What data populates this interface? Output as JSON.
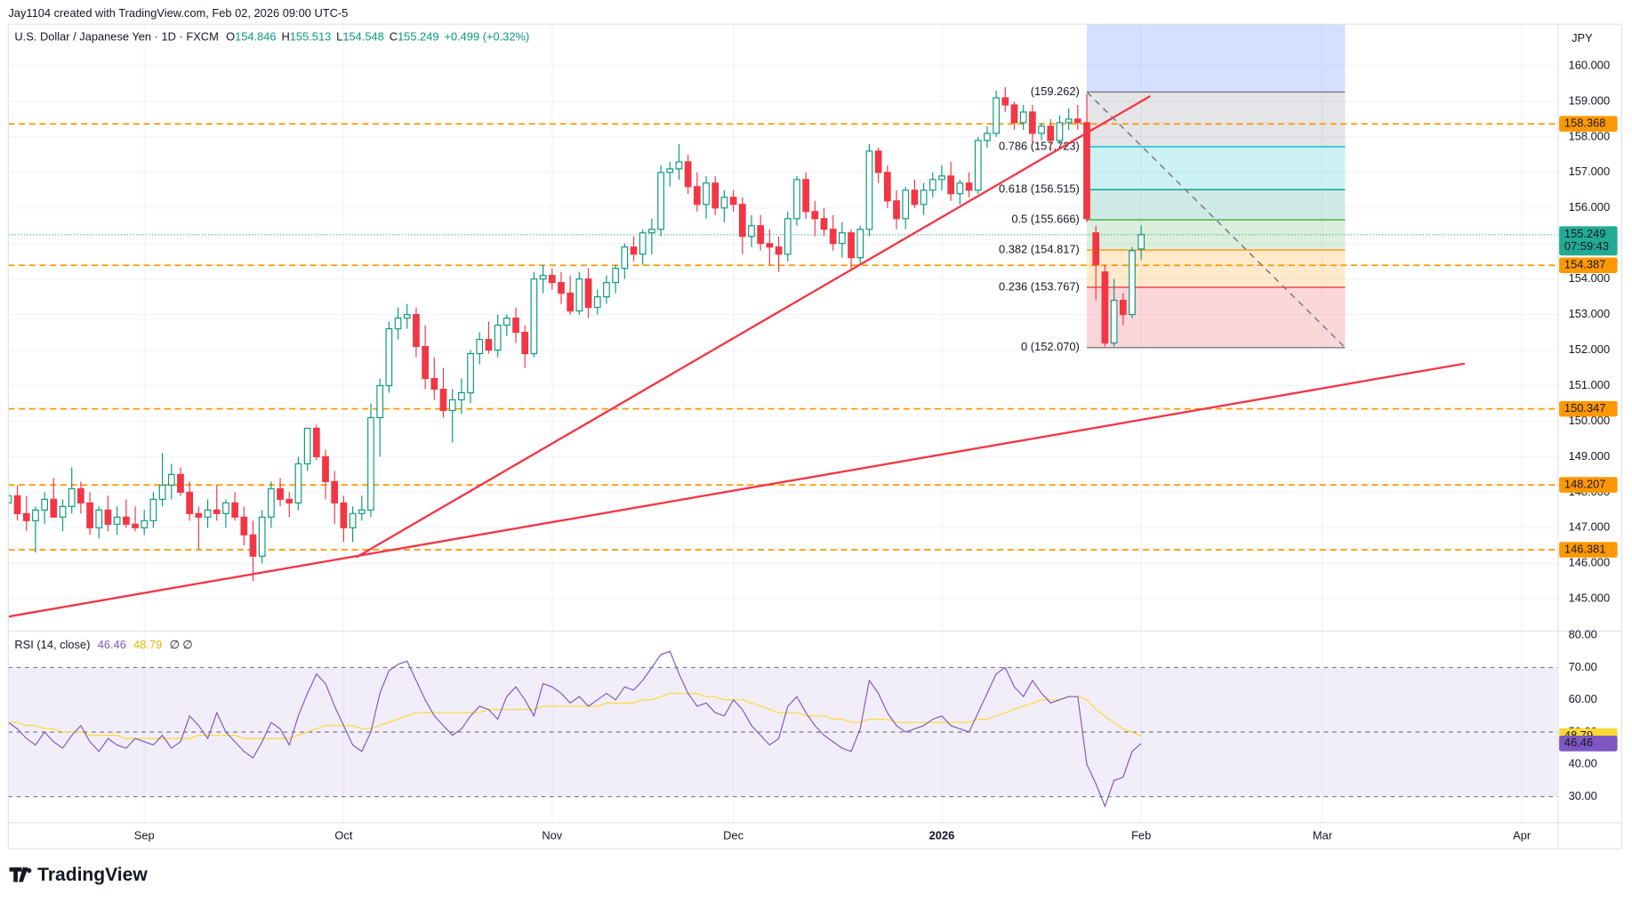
{
  "chart_data": {
    "type": "candlestick",
    "credit": "Jay1104 created with TradingView.com, Feb 02, 2026 09:00 UTC-5",
    "title": "U.S. Dollar / Japanese Yen · 1D · FXCM",
    "ohlc_prefixes": [
      "O",
      "H",
      "L",
      "C"
    ],
    "change": "+0.499 (+0.32%)",
    "currency": "JPY",
    "countdown": "07:59:43",
    "footer_brand": "TradingView",
    "up_color": "#089981",
    "down_color": "#f23645",
    "xlim": [
      0,
      171
    ],
    "xticks": [
      {
        "value": 15,
        "label": "Sep"
      },
      {
        "value": 37,
        "label": "Oct"
      },
      {
        "value": 60,
        "label": "Nov"
      },
      {
        "value": 80,
        "label": "Dec"
      },
      {
        "value": 103,
        "label": "2026"
      },
      {
        "value": 125,
        "label": "Feb"
      },
      {
        "value": 145,
        "label": "Mar"
      },
      {
        "value": 167,
        "label": "Apr"
      }
    ],
    "ylim": [
      144.092,
      161.172
    ],
    "yticks": [
      {
        "value": 145,
        "label": "145.000"
      },
      {
        "value": 146,
        "label": "146.000"
      },
      {
        "value": 147,
        "label": "147.000"
      },
      {
        "value": 148,
        "label": "148.000"
      },
      {
        "value": 149,
        "label": "149.000"
      },
      {
        "value": 150,
        "label": "150.000"
      },
      {
        "value": 151,
        "label": "151.000"
      },
      {
        "value": 152,
        "label": "152.000"
      },
      {
        "value": 153,
        "label": "153.000"
      },
      {
        "value": 154,
        "label": "154.000"
      },
      {
        "value": 155,
        "label": "155.000"
      },
      {
        "value": 156,
        "label": "156.000"
      },
      {
        "value": 157,
        "label": "157.000"
      },
      {
        "value": 158,
        "label": "158.000"
      },
      {
        "value": 159,
        "label": "159.000"
      },
      {
        "value": 160,
        "label": "160.000"
      }
    ],
    "grid": true,
    "candles": [
      [
        147.7,
        148.5,
        147.3,
        147.9
      ],
      [
        147.9,
        148.2,
        147.2,
        147.4
      ],
      [
        147.4,
        147.9,
        146.9,
        147.2
      ],
      [
        147.2,
        147.6,
        146.3,
        147.5
      ],
      [
        147.5,
        148.0,
        147.1,
        147.8
      ],
      [
        147.8,
        148.4,
        147.4,
        147.3
      ],
      [
        147.3,
        147.8,
        146.9,
        147.6
      ],
      [
        147.6,
        148.7,
        147.4,
        148.1
      ],
      [
        148.1,
        148.3,
        147.4,
        147.7
      ],
      [
        147.7,
        148.0,
        146.8,
        147.0
      ],
      [
        147.0,
        147.6,
        146.7,
        147.5
      ],
      [
        147.5,
        147.9,
        146.9,
        147.1
      ],
      [
        147.1,
        147.6,
        146.8,
        147.3
      ],
      [
        147.3,
        147.8,
        147.0,
        147.1
      ],
      [
        147.1,
        147.6,
        146.9,
        147.0
      ],
      [
        147.0,
        147.5,
        146.8,
        147.2
      ],
      [
        147.2,
        148.0,
        147.0,
        147.8
      ],
      [
        147.8,
        149.1,
        147.6,
        148.2
      ],
      [
        148.2,
        148.8,
        147.8,
        148.5
      ],
      [
        148.5,
        148.7,
        147.9,
        148.0
      ],
      [
        148.0,
        148.3,
        147.2,
        147.4
      ],
      [
        147.4,
        147.6,
        146.4,
        147.3
      ],
      [
        147.3,
        147.8,
        147.0,
        147.5
      ],
      [
        147.5,
        148.2,
        147.2,
        147.4
      ],
      [
        147.4,
        147.8,
        147.0,
        147.7
      ],
      [
        147.7,
        148.0,
        147.2,
        147.3
      ],
      [
        147.3,
        147.6,
        146.5,
        146.8
      ],
      [
        146.8,
        147.2,
        145.5,
        146.2
      ],
      [
        146.2,
        147.5,
        146.0,
        147.3
      ],
      [
        147.3,
        148.3,
        147.0,
        148.1
      ],
      [
        148.1,
        148.4,
        147.6,
        147.8
      ],
      [
        147.8,
        148.0,
        147.3,
        147.7
      ],
      [
        147.7,
        149.0,
        147.5,
        148.8
      ],
      [
        148.8,
        149.8,
        148.6,
        149.8
      ],
      [
        149.8,
        149.9,
        148.9,
        149.0
      ],
      [
        149.0,
        149.2,
        147.8,
        148.3
      ],
      [
        148.3,
        148.6,
        147.1,
        147.7
      ],
      [
        147.7,
        147.9,
        146.6,
        147.0
      ],
      [
        147.0,
        147.6,
        146.6,
        147.4
      ],
      [
        147.4,
        147.9,
        147.2,
        147.5
      ],
      [
        147.5,
        150.5,
        147.3,
        150.1
      ],
      [
        150.1,
        151.2,
        149.0,
        151.0
      ],
      [
        151.0,
        152.8,
        150.8,
        152.6
      ],
      [
        152.6,
        153.2,
        152.3,
        152.9
      ],
      [
        152.9,
        153.3,
        152.6,
        153.0
      ],
      [
        153.0,
        153.2,
        151.8,
        152.1
      ],
      [
        152.1,
        152.7,
        150.9,
        151.2
      ],
      [
        151.2,
        151.8,
        150.6,
        150.9
      ],
      [
        150.9,
        151.5,
        150.1,
        150.3
      ],
      [
        150.3,
        150.9,
        149.4,
        150.6
      ],
      [
        150.6,
        151.2,
        150.2,
        150.8
      ],
      [
        150.8,
        152.0,
        150.5,
        151.9
      ],
      [
        151.9,
        152.5,
        151.6,
        152.3
      ],
      [
        152.3,
        152.8,
        151.9,
        152.0
      ],
      [
        152.0,
        153.0,
        151.8,
        152.7
      ],
      [
        152.7,
        153.0,
        152.4,
        152.9
      ],
      [
        152.9,
        153.2,
        152.2,
        152.5
      ],
      [
        152.5,
        152.7,
        151.5,
        151.9
      ],
      [
        151.9,
        154.2,
        151.8,
        154.0
      ],
      [
        154.0,
        154.4,
        153.6,
        154.1
      ],
      [
        154.1,
        154.3,
        153.7,
        153.9
      ],
      [
        153.9,
        154.2,
        153.3,
        153.6
      ],
      [
        153.6,
        154.1,
        153.0,
        153.1
      ],
      [
        153.1,
        154.2,
        153.0,
        154.0
      ],
      [
        154.0,
        154.3,
        152.9,
        153.2
      ],
      [
        153.2,
        153.7,
        153.0,
        153.5
      ],
      [
        153.5,
        154.1,
        153.3,
        153.9
      ],
      [
        153.9,
        154.4,
        153.6,
        154.3
      ],
      [
        154.3,
        155.0,
        154.0,
        154.9
      ],
      [
        154.9,
        155.2,
        154.5,
        154.7
      ],
      [
        154.7,
        155.4,
        154.4,
        155.3
      ],
      [
        155.3,
        155.7,
        154.7,
        155.4
      ],
      [
        155.4,
        157.2,
        155.2,
        157.0
      ],
      [
        157.0,
        157.3,
        156.6,
        157.1
      ],
      [
        157.1,
        157.8,
        156.8,
        157.3
      ],
      [
        157.3,
        157.5,
        156.4,
        156.6
      ],
      [
        156.6,
        157.0,
        155.9,
        156.1
      ],
      [
        156.1,
        156.9,
        155.7,
        156.7
      ],
      [
        156.7,
        156.9,
        155.8,
        156.0
      ],
      [
        156.0,
        156.5,
        155.6,
        156.3
      ],
      [
        156.3,
        156.5,
        155.9,
        156.1
      ],
      [
        156.1,
        156.3,
        154.7,
        155.2
      ],
      [
        155.2,
        155.8,
        154.9,
        155.5
      ],
      [
        155.5,
        155.8,
        154.8,
        155.0
      ],
      [
        155.0,
        155.4,
        154.4,
        154.9
      ],
      [
        154.9,
        155.2,
        154.2,
        154.7
      ],
      [
        154.7,
        155.9,
        154.5,
        155.7
      ],
      [
        155.7,
        156.9,
        155.5,
        156.8
      ],
      [
        156.8,
        157.0,
        155.7,
        155.9
      ],
      [
        155.9,
        156.2,
        155.2,
        155.7
      ],
      [
        155.7,
        156.0,
        155.2,
        155.4
      ],
      [
        155.4,
        155.8,
        154.8,
        155.0
      ],
      [
        155.0,
        155.6,
        154.6,
        155.3
      ],
      [
        155.3,
        155.4,
        154.3,
        154.6
      ],
      [
        154.6,
        155.5,
        154.4,
        155.4
      ],
      [
        155.4,
        157.8,
        155.2,
        157.6
      ],
      [
        157.6,
        157.7,
        156.7,
        157.0
      ],
      [
        157.0,
        157.2,
        156.0,
        156.2
      ],
      [
        156.2,
        156.5,
        155.4,
        155.7
      ],
      [
        155.7,
        156.6,
        155.4,
        156.5
      ],
      [
        156.5,
        156.8,
        156.0,
        156.1
      ],
      [
        156.1,
        156.7,
        155.8,
        156.5
      ],
      [
        156.5,
        157.0,
        156.3,
        156.8
      ],
      [
        156.8,
        157.2,
        156.5,
        156.9
      ],
      [
        156.9,
        157.3,
        156.2,
        156.4
      ],
      [
        156.4,
        156.8,
        156.1,
        156.7
      ],
      [
        156.7,
        157.0,
        156.3,
        156.5
      ],
      [
        156.5,
        158.0,
        156.4,
        157.9
      ],
      [
        157.9,
        158.3,
        157.7,
        158.1
      ],
      [
        158.1,
        159.3,
        158.0,
        159.1
      ],
      [
        159.1,
        159.4,
        158.7,
        158.9
      ],
      [
        158.9,
        159.0,
        158.2,
        158.4
      ],
      [
        158.4,
        158.9,
        158.2,
        158.7
      ],
      [
        158.7,
        158.9,
        157.8,
        158.1
      ],
      [
        158.1,
        158.4,
        157.9,
        158.3
      ],
      [
        158.3,
        158.5,
        157.6,
        157.9
      ],
      [
        157.9,
        158.6,
        157.8,
        158.4
      ],
      [
        158.4,
        158.8,
        158.2,
        158.5
      ],
      [
        158.5,
        158.9,
        158.2,
        158.4
      ],
      [
        158.4,
        159.2,
        155.6,
        155.7
      ],
      [
        155.3,
        155.5,
        153.4,
        154.4
      ],
      [
        154.2,
        154.4,
        152.1,
        152.2
      ],
      [
        152.2,
        154.0,
        152.1,
        153.4
      ],
      [
        153.4,
        153.6,
        152.7,
        153.0
      ],
      [
        153.0,
        154.9,
        152.9,
        154.8
      ],
      [
        154.846,
        155.513,
        154.548,
        155.249
      ]
    ],
    "horizontal_lines": [
      158.368,
      154.387,
      150.347,
      148.207,
      146.381
    ],
    "horizontal_line_color": "#ff9800",
    "price_line_color": "#22ab94",
    "trend_lines": [
      {
        "color": "#f23645",
        "dashed": false,
        "x": [
          38.4,
          126
        ],
        "y": [
          146.17,
          159.15
        ]
      },
      {
        "color": "#f23645",
        "dashed": false,
        "x": [
          0,
          160.7
        ],
        "y": [
          144.5,
          151.62
        ]
      },
      {
        "color": "#787b86",
        "dashed": true,
        "x": [
          119,
          147.5
        ],
        "y": [
          159.262,
          152.07
        ]
      }
    ],
    "fib": {
      "x": [
        119,
        147.5
      ],
      "extension_color": "#2962ff",
      "levels": [
        {
          "label": "(159.262)",
          "value": 159.262,
          "color": "#787b86"
        },
        {
          "label": "0.786 (157.723)",
          "value": 157.723,
          "color": "#00bcd4"
        },
        {
          "label": "0.618 (156.515)",
          "value": 156.515,
          "color": "#089981"
        },
        {
          "label": "0.5 (155.666)",
          "value": 155.666,
          "color": "#4caf50"
        },
        {
          "label": "0.382 (154.817)",
          "value": 154.817,
          "color": "#ff9800"
        },
        {
          "label": "0.236 (153.767)",
          "value": 153.767,
          "color": "#f23645"
        },
        {
          "label": "0 (152.070)",
          "value": 152.07,
          "color": "#787b86"
        }
      ]
    },
    "rsi": {
      "title": "RSI (14, close)",
      "na_symbols": "∅  ∅",
      "color": "#7e57c2",
      "ma_color": "#fdd835",
      "ylim": [
        21.94,
        81.29
      ],
      "yticks": [
        {
          "value": 30,
          "label": "30.00"
        },
        {
          "value": 40,
          "label": "40.00"
        },
        {
          "value": 50,
          "label": "50.00"
        },
        {
          "value": 60,
          "label": "60.00"
        },
        {
          "value": 70,
          "label": "70.00"
        },
        {
          "value": 80,
          "label": "80.00"
        }
      ],
      "levels": [
        70,
        50,
        30
      ],
      "values": [
        53,
        51,
        48,
        46,
        50,
        47,
        45,
        49,
        52,
        47,
        44,
        48,
        46,
        45,
        48,
        47,
        46,
        49,
        45,
        47,
        55,
        52,
        48,
        56,
        50,
        47,
        44,
        42,
        47,
        53,
        51,
        46,
        55,
        62,
        68,
        65,
        58,
        52,
        46,
        44,
        50,
        62,
        69,
        71,
        72,
        66,
        60,
        55,
        52,
        49,
        51,
        55,
        58,
        57,
        54,
        61,
        64,
        60,
        55,
        65,
        64,
        62,
        59,
        61,
        58,
        60,
        62,
        60,
        64,
        63,
        66,
        70,
        74,
        75,
        68,
        62,
        58,
        59,
        56,
        55,
        60,
        57,
        52,
        49,
        46,
        48,
        58,
        61,
        56,
        52,
        49,
        47,
        45,
        44,
        51,
        66,
        62,
        56,
        52,
        50,
        51,
        52,
        54,
        55,
        52,
        51,
        50,
        56,
        62,
        68,
        70,
        64,
        61,
        66,
        62,
        59,
        60,
        61,
        61,
        40,
        34,
        27,
        35,
        36,
        44,
        46.46
      ],
      "ma": [
        53,
        53,
        52,
        52,
        51,
        51,
        50,
        50,
        50,
        49,
        49,
        49,
        49,
        48,
        48,
        48,
        48,
        48,
        48,
        48,
        48,
        49,
        49,
        49,
        49,
        49,
        48,
        48,
        48,
        48,
        48,
        48,
        49,
        50,
        51,
        52,
        52,
        52,
        52,
        51,
        51,
        52,
        53,
        54,
        55,
        56,
        56,
        56,
        56,
        56,
        56,
        56,
        56,
        57,
        57,
        57,
        57,
        57,
        57,
        58,
        58,
        58,
        58,
        58,
        58,
        58,
        59,
        59,
        59,
        59,
        60,
        60,
        61,
        62,
        62,
        62,
        62,
        61,
        61,
        60,
        60,
        60,
        59,
        58,
        57,
        56,
        56,
        56,
        55,
        55,
        55,
        54,
        54,
        53,
        53,
        54,
        54,
        54,
        53,
        53,
        53,
        53,
        53,
        53,
        53,
        53,
        53,
        54,
        54,
        55,
        56,
        57,
        58,
        59,
        60,
        60,
        60,
        61,
        61,
        60,
        57,
        55,
        53,
        51,
        50,
        48.79
      ]
    }
  }
}
